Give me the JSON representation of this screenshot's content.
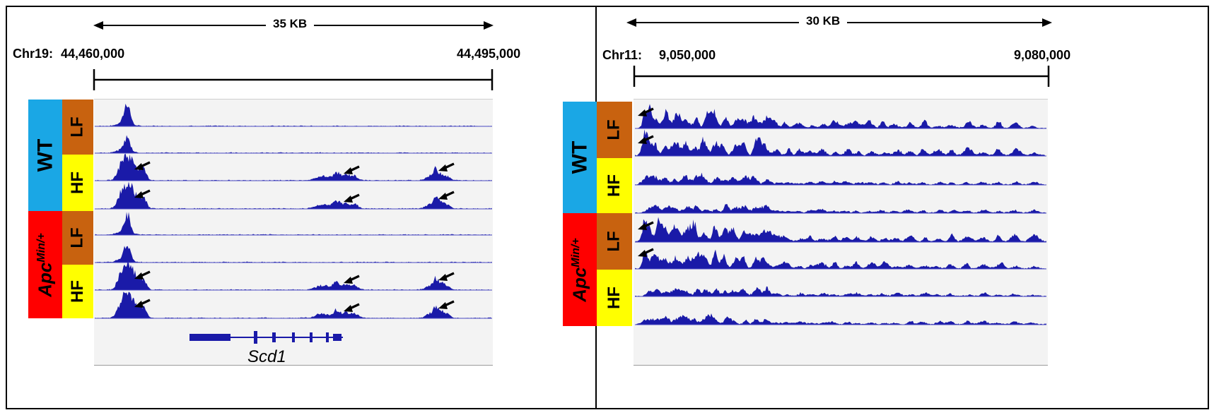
{
  "left_panel": {
    "scale_label": "35 KB",
    "chrom_label": "Chr19:",
    "start_coord": "44,460,000",
    "end_coord": "44,495,000",
    "gene_label": "Scd1",
    "genotypes": [
      {
        "label": "WT",
        "color": "#1aa7e5"
      },
      {
        "label": "Apc",
        "superscript": "Min/+",
        "color": "#ff0000"
      }
    ],
    "diets": [
      "LF",
      "HF",
      "LF",
      "HF"
    ]
  },
  "right_panel": {
    "scale_label": "30 KB",
    "chrom_label": "Chr11:",
    "start_coord": "9,050,000",
    "end_coord": "9,080,000",
    "genotypes": [
      {
        "label": "WT",
        "color": "#1aa7e5"
      },
      {
        "label": "Apc",
        "superscript": "Min/+",
        "color": "#ff0000"
      }
    ],
    "diets": [
      "LF",
      "HF",
      "LF",
      "HF"
    ]
  },
  "colors": {
    "LF": "#c8620f",
    "HF": "#ffff00",
    "signal": "#1a1aa8",
    "baseline": "#4a4ac0",
    "arrow": "#000000"
  }
}
